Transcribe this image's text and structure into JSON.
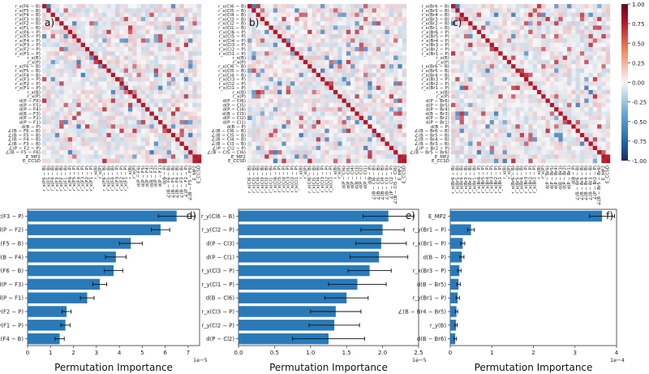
{
  "colorbar": {
    "ticks": [
      "1.00",
      "0.75",
      "0.50",
      "0.25",
      "0.00",
      "-0.25",
      "-0.50",
      "-0.75",
      "-1.00"
    ],
    "colors": {
      "high": "#b2182b",
      "mid": "#f7f7f7",
      "low": "#2b4a87"
    }
  },
  "chart_data": [
    {
      "type": "heatmap",
      "panel": "a)",
      "row_labels": [
        "r_x(F6 − B)",
        "r_x(F5 − B)",
        "r_x(F4 − B)",
        "r_x(F3 − B)",
        "r_x(F2 − B)",
        "r_x(F1 − B)",
        "r_x(F6 − P)",
        "r_x(F5 − P)",
        "r_x(F4 − P)",
        "r_x(F3 − P)",
        "r_x(F2 − P)",
        "r_x(F1 − P)",
        "r_x(B)",
        "r_x(P)",
        "r_x(F6 − B)",
        "r_x(F5 − B)",
        "r_x(F4 − B)",
        "r_x(F3 − P)",
        "r_x(F2 − P)",
        "r_x(F1 − P)",
        "r_x(B)",
        "r_x(P)",
        "d(P − F6)",
        "d(P − F5)",
        "d(P − F4)",
        "d(B − F3)",
        "d(P − F2)",
        "d(P − F1)",
        "d(B − P)",
        "∠(B − F6 − B)",
        "∠(B − F5 − B)",
        "∠(B − F4 − B)",
        "∠(B − F3 − B)",
        "∠(P − F2 − P)",
        "∠(B − F5 − F6)",
        "E_MP2",
        "E_CCSD"
      ],
      "col_labels": [
        "r_x(F6 − B)",
        "r_x(F5 − B)",
        "r_x(F4 − B)",
        "r_x(F3 − B)",
        "r_x(F2 − B)",
        "r_x(F1 − B)",
        "r_x(F6 − P)",
        "r_x(F5 − P)",
        "r_x(F4 − P)",
        "r_x(F3 − P)",
        "r_x(F2 − P)",
        "r_x(F1 − P)",
        "r_x(B)",
        "r_x(P)",
        "r_x(F6 − B)",
        "r_x(F5 − B)",
        "r_x(F4 − B)",
        "r_x(F3 − P)",
        "r_x(F2 − P)",
        "r_x(F1 − P)",
        "r_x(B)",
        "r_x(P)",
        "d(P − F6)",
        "d(P − F5)",
        "d(P − F4)",
        "d(B − F3)",
        "d(P − F2)",
        "d(P − F1)",
        "d(B − P)",
        "∠(B − F6 − B)",
        "∠(B − F5 − B)",
        "∠(B − F4 − B)",
        "∠(B − F3 − B)",
        "∠(P − F2 − P)",
        "∠(B − F5 − F6)",
        "E_MP2",
        "E_CCSD"
      ],
      "diagonal": 1.0,
      "value_range": [
        -1,
        1
      ]
    },
    {
      "type": "heatmap",
      "panel": "b)",
      "row_labels": [
        "r_x(Cl6 − B)",
        "r_x(Cl5 − B)",
        "r_x(Cl4 − B)",
        "r_x(Cl3 − B)",
        "r_x(Cl2 − B)",
        "r_x(Cl1 − B)",
        "r_x(Cl6 − P)",
        "r_x(Cl5 − P)",
        "r_x(Cl4 − P)",
        "r_x(Cl3 − P)",
        "r_x(Cl2 − P)",
        "r_x(Cl1 − P)",
        "r_x(B)",
        "r_x(P)",
        "r_x(Cl6 − B)",
        "r_x(Cl5 − B)",
        "r_x(Cl4 − B)",
        "r_x(Cl3 − P)",
        "r_x(Cl2 − P)",
        "r_x(Cl1 − P)",
        "r_x(B)",
        "r_x(P)",
        "d(P − Cl6)",
        "d(P − Cl5)",
        "d(P − Cl4)",
        "d(B − Cl3)",
        "d(P − Cl2)",
        "d(P − Cl1)",
        "d(B − P)",
        "∠(B − Cl6 − B)",
        "∠(B − Cl5 − B)",
        "∠(B − Cl4 − B)",
        "∠(B − Cl3 − B)",
        "∠(P − Cl2 − P)",
        "∠(B − Cl5 − Cl6)",
        "E_MP2",
        "E_CCSD"
      ],
      "col_labels": [
        "r_x(Cl6 − B)",
        "r_x(Cl5 − B)",
        "r_x(Cl4 − B)",
        "r_x(Cl3 − B)",
        "r_x(Cl2 − B)",
        "r_x(Cl1 − B)",
        "r_x(Cl6 − P)",
        "r_x(Cl5 − P)",
        "r_x(Cl4 − P)",
        "r_x(Cl3 − P)",
        "r_x(Cl2 − P)",
        "r_x(Cl1 − P)",
        "r_x(B)",
        "r_x(P)",
        "r_x(Cl6 − B)",
        "r_x(Cl5 − B)",
        "r_x(Cl4 − B)",
        "r_x(Cl3 − P)",
        "r_x(Cl2 − P)",
        "r_x(Cl1 − P)",
        "r_x(B)",
        "r_x(P)",
        "d(P − Cl6)",
        "d(P − Cl5)",
        "d(P − Cl4)",
        "d(B − Cl3)",
        "d(P − Cl2)",
        "d(P − Cl1)",
        "d(B − P)",
        "∠(B − Cl6 − B)",
        "∠(B − Cl5 − B)",
        "∠(B − Cl4 − B)",
        "∠(B − Cl3 − B)",
        "∠(P − Cl2 − P)",
        "∠(B − Cl5 − Cl6)",
        "E_MP2",
        "E_CCSD"
      ],
      "diagonal": 1.0,
      "value_range": [
        -1,
        1
      ]
    },
    {
      "type": "heatmap",
      "panel": "c)",
      "row_labels": [
        "r_x(Br6 − B)",
        "r_x(Br5 − B)",
        "r_x(Br4 − B)",
        "r_x(Br3 − B)",
        "r_x(Br2 − B)",
        "r_x(Br1 − B)",
        "r_x(Br6 − P)",
        "r_x(Br5 − P)",
        "r_x(Br4 − P)",
        "r_x(Br3 − P)",
        "r_x(Br2 − P)",
        "r_x(Br1 − P)",
        "r_x(B)",
        "r_x(P)",
        "r_x(Br6 − B)",
        "r_x(Br5 − B)",
        "r_x(Br4 − B)",
        "r_x(Br3 − P)",
        "r_x(Br2 − P)",
        "r_x(Br1 − P)",
        "r_x(B)",
        "r_x(P)",
        "d(P − Br6)",
        "d(P − Br5)",
        "d(P − Br4)",
        "d(B − Br3)",
        "d(P − Br2)",
        "d(P − Br1)",
        "d(B − P)",
        "∠(B − Br6 − B)",
        "∠(B − Br5 − B)",
        "∠(B − Br4 − B)",
        "∠(B − Br3 − B)",
        "∠(P − Br2 − P)",
        "∠(B − Br5 − Br6)",
        "E_MP2",
        "E_CCSD"
      ],
      "col_labels": [
        "r_x(Br6 − B)",
        "r_x(Br5 − B)",
        "r_x(Br4 − B)",
        "r_x(Br3 − B)",
        "r_x(Br2 − B)",
        "r_x(Br1 − B)",
        "r_x(Br6 − P)",
        "r_x(Br5 − P)",
        "r_x(Br4 − P)",
        "r_x(Br3 − P)",
        "r_x(Br2 − P)",
        "r_x(Br1 − P)",
        "r_x(B)",
        "r_x(P)",
        "r_x(Br6 − B)",
        "r_x(Br5 − B)",
        "r_x(Br4 − B)",
        "r_x(Br3 − P)",
        "r_x(Br2 − P)",
        "r_x(Br1 − P)",
        "r_x(B)",
        "r_x(P)",
        "d(P − Br6)",
        "d(P − Br5)",
        "d(P − Br4)",
        "d(B − Br3)",
        "d(P − Br2)",
        "d(P − Br1)",
        "d(B − P)",
        "∠(B − Br6 − B)",
        "∠(B − Br5 − B)",
        "∠(B − Br4 − B)",
        "∠(B − Br3 − B)",
        "∠(P − Br2 − P)",
        "∠(B − Br5 − Br6)",
        "E_MP2",
        "E_CCSD"
      ],
      "diagonal": 1.0,
      "value_range": [
        -1,
        1
      ]
    },
    {
      "type": "bar",
      "orientation": "horizontal",
      "panel": "d)",
      "xlabel": "Permutation Importance",
      "x_exponent": "1e−5",
      "xlim": [
        0,
        7.5
      ],
      "xticks": [
        "0",
        "1",
        "2",
        "3",
        "4",
        "5",
        "6",
        "7"
      ],
      "categories": [
        "r_x(F3 − P)",
        "d(P − F2)",
        "r_x(F5 − B)",
        "d(B − F4)",
        "r_y(F6 − B)",
        "d(P − F3)",
        "d(P − F1)",
        "r_y(F2 − P)",
        "r_y(F1 − P)",
        "r_x(F4 − B)"
      ],
      "values": [
        6.5,
        5.8,
        4.5,
        3.85,
        3.75,
        3.15,
        2.6,
        1.7,
        1.65,
        1.4
      ],
      "errors": [
        0.8,
        0.4,
        0.5,
        0.45,
        0.4,
        0.3,
        0.3,
        0.2,
        0.2,
        0.2
      ],
      "bar_color": "#2a7ab9"
    },
    {
      "type": "bar",
      "orientation": "horizontal",
      "panel": "e)",
      "xlabel": "Permutation Importance",
      "x_exponent": "1e−5",
      "xlim": [
        0,
        2.5
      ],
      "xticks": [
        "0.0",
        "0.5",
        "1.0",
        "1.5",
        "2.0",
        "2.5"
      ],
      "categories": [
        "r_y(Cl6 − B)",
        "r_y(Cl2 − P)",
        "d(P − Cl3)",
        "d(P − Cl1)",
        "r_y(Cl3 − P)",
        "r_y(Cl1 − P)",
        "d(B − Cl6)",
        "r_x(Cl3 − P)",
        "r_y(Cl2 − P)",
        "d(P − Cl2)"
      ],
      "values": [
        2.08,
        2.0,
        1.98,
        1.95,
        1.82,
        1.65,
        1.5,
        1.35,
        1.33,
        1.25
      ],
      "errors": [
        0.35,
        0.3,
        0.35,
        0.4,
        0.3,
        0.4,
        0.3,
        0.35,
        0.35,
        0.5
      ],
      "bar_color": "#2a7ab9"
    },
    {
      "type": "bar",
      "orientation": "horizontal",
      "panel": "f)",
      "xlabel": "Permutation Importance",
      "x_exponent": "1e−4",
      "xlim": [
        0,
        4.0
      ],
      "xticks": [
        "0",
        "1",
        "2",
        "3",
        "4"
      ],
      "categories": [
        "E_MP2",
        "r_y(Br1 − P)",
        "r_x(Br1 − P)",
        "d(B − P)",
        "r_x(Br3 − P)",
        "d(B − Br5)",
        "r_y(Br1 − P)",
        "∠(B − Br4 − Br5)",
        "r_y(B)",
        "d(B − Br6)"
      ],
      "values": [
        3.65,
        0.5,
        0.3,
        0.28,
        0.22,
        0.2,
        0.18,
        0.15,
        0.14,
        0.12
      ],
      "errors": [
        0.3,
        0.08,
        0.05,
        0.05,
        0.04,
        0.04,
        0.04,
        0.03,
        0.03,
        0.03
      ],
      "bar_color": "#2a7ab9"
    }
  ]
}
